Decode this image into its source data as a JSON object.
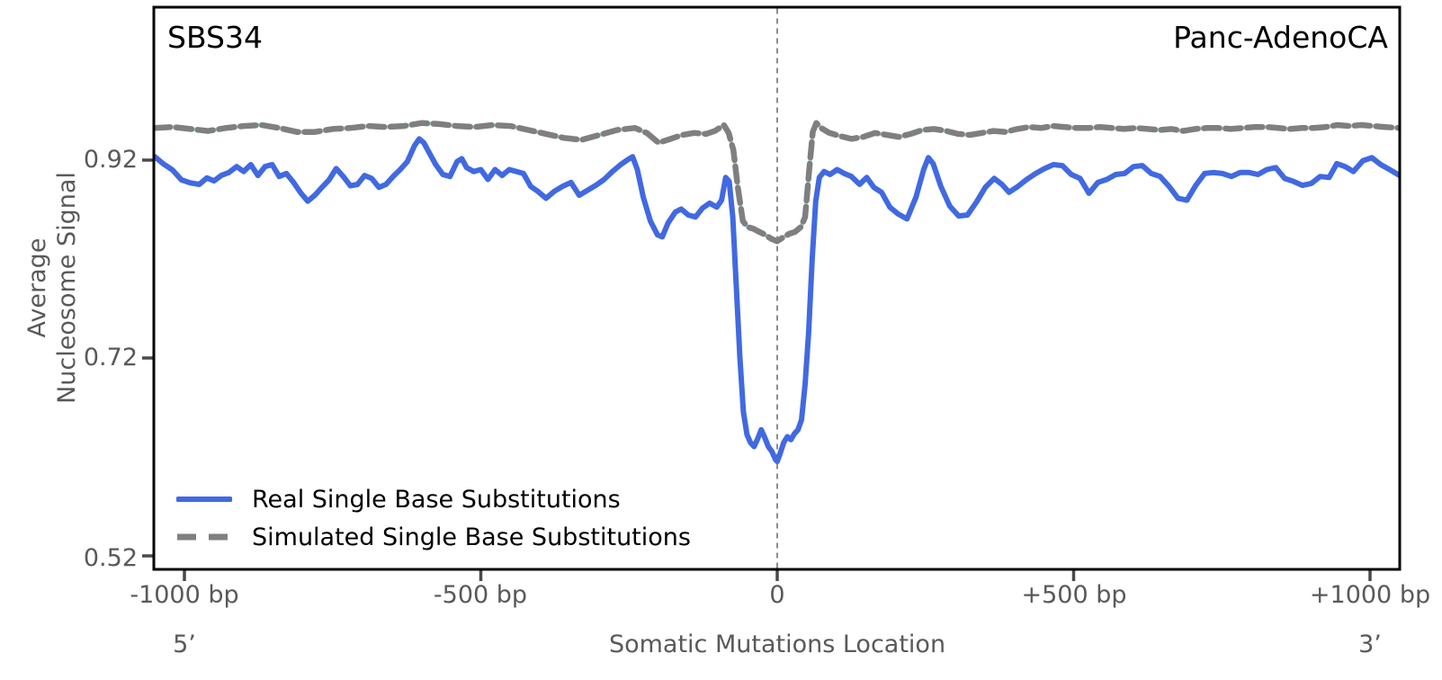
{
  "panel": {
    "left_title": "SBS34",
    "right_title": "Panc-AdenoCA"
  },
  "axis": {
    "y_label_line1": "Average",
    "y_label_line2": "Nucleosome Signal",
    "x_label": "Somatic Mutations Location",
    "left_end_label": "5’",
    "right_end_label": "3’"
  },
  "legend": {
    "real_label": "Real Single Base Substitutions",
    "simulated_label": "Simulated Single Base Substitutions"
  },
  "chart_data": {
    "type": "line",
    "title": "",
    "xlabel": "Somatic Mutations Location",
    "ylabel": "Average Nucleosome Signal",
    "xlim": [
      -1050,
      1050
    ],
    "ylim": [
      0.5,
      1.07
    ],
    "grid": false,
    "legend_position": "lower left",
    "center_guide_line_x": 0,
    "x_ticks": [
      {
        "value": -1000,
        "label": "-1000 bp"
      },
      {
        "value": -500,
        "label": "-500 bp"
      },
      {
        "value": 0,
        "label": "0"
      },
      {
        "value": 500,
        "label": "+500 bp"
      },
      {
        "value": 1000,
        "label": "+1000 bp"
      }
    ],
    "y_ticks": [
      {
        "value": 0.92,
        "label": "0.92"
      },
      {
        "value": 0.72,
        "label": "0.72"
      },
      {
        "value": 0.52,
        "label": "0.52"
      }
    ],
    "colors": {
      "real": "#4169E1",
      "simulated": "#7f7f7f",
      "simulated_underlay": "#ADD8E6",
      "axis_text": "#595959",
      "tick_mark": "#4a4a4a",
      "spine": "#000000",
      "guide_line": "#7f7f7f"
    },
    "series": [
      {
        "name": "Simulated Single Base Substitutions",
        "style": "dashed",
        "color_key": "simulated",
        "points": [
          [
            -1050,
            0.9525
          ],
          [
            -1020,
            0.9535
          ],
          [
            -990,
            0.9515
          ],
          [
            -960,
            0.9495
          ],
          [
            -930,
            0.9525
          ],
          [
            -900,
            0.9545
          ],
          [
            -870,
            0.9555
          ],
          [
            -840,
            0.9525
          ],
          [
            -810,
            0.9485
          ],
          [
            -780,
            0.9485
          ],
          [
            -750,
            0.9515
          ],
          [
            -720,
            0.9525
          ],
          [
            -690,
            0.9545
          ],
          [
            -660,
            0.9535
          ],
          [
            -630,
            0.9545
          ],
          [
            -600,
            0.9575
          ],
          [
            -570,
            0.9565
          ],
          [
            -540,
            0.9545
          ],
          [
            -510,
            0.9535
          ],
          [
            -480,
            0.9555
          ],
          [
            -450,
            0.9545
          ],
          [
            -420,
            0.9505
          ],
          [
            -390,
            0.9465
          ],
          [
            -360,
            0.9425
          ],
          [
            -330,
            0.9405
          ],
          [
            -300,
            0.9455
          ],
          [
            -270,
            0.9505
          ],
          [
            -240,
            0.9525
          ],
          [
            -220,
            0.9475
          ],
          [
            -200,
            0.9375
          ],
          [
            -180,
            0.9415
          ],
          [
            -160,
            0.9455
          ],
          [
            -140,
            0.9475
          ],
          [
            -120,
            0.9465
          ],
          [
            -105,
            0.9495
          ],
          [
            -90,
            0.9555
          ],
          [
            -82,
            0.9475
          ],
          [
            -74,
            0.9305
          ],
          [
            -66,
            0.8905
          ],
          [
            -58,
            0.8585
          ],
          [
            -50,
            0.8525
          ],
          [
            -40,
            0.8505
          ],
          [
            -30,
            0.8475
          ],
          [
            -20,
            0.8445
          ],
          [
            -10,
            0.8405
          ],
          [
            0,
            0.838
          ],
          [
            10,
            0.842
          ],
          [
            20,
            0.8455
          ],
          [
            30,
            0.8475
          ],
          [
            40,
            0.8525
          ],
          [
            47,
            0.8625
          ],
          [
            54,
            0.9105
          ],
          [
            60,
            0.9485
          ],
          [
            66,
            0.9575
          ],
          [
            74,
            0.9525
          ],
          [
            88,
            0.9475
          ],
          [
            105,
            0.9445
          ],
          [
            125,
            0.9415
          ],
          [
            145,
            0.9435
          ],
          [
            165,
            0.9475
          ],
          [
            185,
            0.9455
          ],
          [
            205,
            0.9435
          ],
          [
            225,
            0.9465
          ],
          [
            245,
            0.9505
          ],
          [
            265,
            0.9515
          ],
          [
            285,
            0.9495
          ],
          [
            305,
            0.9465
          ],
          [
            325,
            0.9455
          ],
          [
            345,
            0.9475
          ],
          [
            365,
            0.9495
          ],
          [
            385,
            0.9485
          ],
          [
            405,
            0.9515
          ],
          [
            425,
            0.9535
          ],
          [
            445,
            0.9525
          ],
          [
            465,
            0.9545
          ],
          [
            485,
            0.9535
          ],
          [
            505,
            0.9525
          ],
          [
            525,
            0.9525
          ],
          [
            545,
            0.9535
          ],
          [
            565,
            0.9525
          ],
          [
            585,
            0.9515
          ],
          [
            605,
            0.9525
          ],
          [
            625,
            0.9515
          ],
          [
            645,
            0.9505
          ],
          [
            665,
            0.9515
          ],
          [
            685,
            0.9495
          ],
          [
            705,
            0.9515
          ],
          [
            725,
            0.9525
          ],
          [
            745,
            0.9525
          ],
          [
            765,
            0.9515
          ],
          [
            785,
            0.9525
          ],
          [
            805,
            0.9535
          ],
          [
            825,
            0.9535
          ],
          [
            845,
            0.9525
          ],
          [
            865,
            0.9515
          ],
          [
            885,
            0.9525
          ],
          [
            905,
            0.9525
          ],
          [
            925,
            0.9535
          ],
          [
            945,
            0.9555
          ],
          [
            965,
            0.9545
          ],
          [
            985,
            0.9555
          ],
          [
            1005,
            0.9545
          ],
          [
            1025,
            0.9535
          ],
          [
            1050,
            0.9525
          ]
        ]
      },
      {
        "name": "Real Single Base Substitutions",
        "style": "solid",
        "color_key": "real",
        "points": [
          [
            -1050,
            0.9235
          ],
          [
            -1035,
            0.916
          ],
          [
            -1020,
            0.91
          ],
          [
            -1005,
            0.9
          ],
          [
            -990,
            0.897
          ],
          [
            -975,
            0.8955
          ],
          [
            -962,
            0.902
          ],
          [
            -950,
            0.899
          ],
          [
            -938,
            0.9045
          ],
          [
            -925,
            0.9075
          ],
          [
            -912,
            0.9135
          ],
          [
            -900,
            0.9085
          ],
          [
            -888,
            0.9155
          ],
          [
            -876,
            0.9045
          ],
          [
            -864,
            0.9135
          ],
          [
            -852,
            0.9155
          ],
          [
            -840,
            0.9035
          ],
          [
            -828,
            0.9065
          ],
          [
            -816,
            0.8975
          ],
          [
            -804,
            0.887
          ],
          [
            -792,
            0.8785
          ],
          [
            -780,
            0.8845
          ],
          [
            -768,
            0.8925
          ],
          [
            -756,
            0.9
          ],
          [
            -744,
            0.9115
          ],
          [
            -732,
            0.9035
          ],
          [
            -720,
            0.894
          ],
          [
            -708,
            0.8955
          ],
          [
            -696,
            0.9045
          ],
          [
            -684,
            0.9015
          ],
          [
            -672,
            0.8925
          ],
          [
            -660,
            0.8955
          ],
          [
            -648,
            0.9035
          ],
          [
            -636,
            0.9105
          ],
          [
            -624,
            0.9185
          ],
          [
            -612,
            0.9345
          ],
          [
            -604,
            0.9415
          ],
          [
            -596,
            0.9375
          ],
          [
            -588,
            0.9285
          ],
          [
            -576,
            0.9155
          ],
          [
            -564,
            0.9055
          ],
          [
            -552,
            0.9035
          ],
          [
            -540,
            0.9185
          ],
          [
            -532,
            0.9215
          ],
          [
            -524,
            0.9125
          ],
          [
            -512,
            0.9085
          ],
          [
            -500,
            0.9105
          ],
          [
            -488,
            0.9005
          ],
          [
            -476,
            0.9105
          ],
          [
            -464,
            0.9045
          ],
          [
            -452,
            0.9105
          ],
          [
            -440,
            0.9085
          ],
          [
            -428,
            0.9065
          ],
          [
            -416,
            0.8935
          ],
          [
            -404,
            0.8885
          ],
          [
            -390,
            0.8815
          ],
          [
            -376,
            0.8885
          ],
          [
            -362,
            0.8935
          ],
          [
            -348,
            0.8975
          ],
          [
            -334,
            0.8845
          ],
          [
            -320,
            0.8895
          ],
          [
            -306,
            0.8945
          ],
          [
            -292,
            0.9005
          ],
          [
            -278,
            0.9085
          ],
          [
            -264,
            0.9155
          ],
          [
            -252,
            0.9205
          ],
          [
            -244,
            0.9235
          ],
          [
            -236,
            0.9105
          ],
          [
            -226,
            0.8825
          ],
          [
            -214,
            0.8585
          ],
          [
            -202,
            0.8445
          ],
          [
            -194,
            0.8425
          ],
          [
            -184,
            0.8565
          ],
          [
            -172,
            0.8675
          ],
          [
            -162,
            0.8705
          ],
          [
            -150,
            0.8645
          ],
          [
            -138,
            0.8625
          ],
          [
            -126,
            0.8715
          ],
          [
            -114,
            0.8765
          ],
          [
            -102,
            0.8725
          ],
          [
            -94,
            0.8795
          ],
          [
            -87,
            0.9025
          ],
          [
            -81,
            0.8985
          ],
          [
            -75,
            0.8625
          ],
          [
            -69,
            0.7925
          ],
          [
            -63,
            0.7205
          ],
          [
            -57,
            0.6655
          ],
          [
            -51,
            0.6425
          ],
          [
            -45,
            0.6345
          ],
          [
            -39,
            0.6305
          ],
          [
            -33,
            0.6385
          ],
          [
            -27,
            0.6475
          ],
          [
            -21,
            0.6395
          ],
          [
            -15,
            0.6305
          ],
          [
            -9,
            0.6255
          ],
          [
            -3,
            0.6175
          ],
          [
            0,
            0.6155
          ],
          [
            5,
            0.6235
          ],
          [
            11,
            0.6345
          ],
          [
            17,
            0.6405
          ],
          [
            23,
            0.6375
          ],
          [
            29,
            0.6435
          ],
          [
            35,
            0.6475
          ],
          [
            41,
            0.6575
          ],
          [
            47,
            0.6935
          ],
          [
            53,
            0.7455
          ],
          [
            59,
            0.8205
          ],
          [
            65,
            0.8785
          ],
          [
            71,
            0.9025
          ],
          [
            79,
            0.9085
          ],
          [
            89,
            0.9055
          ],
          [
            101,
            0.9105
          ],
          [
            113,
            0.9065
          ],
          [
            125,
            0.9035
          ],
          [
            139,
            0.8955
          ],
          [
            151,
            0.9025
          ],
          [
            163,
            0.8925
          ],
          [
            176,
            0.8875
          ],
          [
            190,
            0.8725
          ],
          [
            204,
            0.8655
          ],
          [
            219,
            0.8605
          ],
          [
            234,
            0.8825
          ],
          [
            247,
            0.9105
          ],
          [
            255,
            0.9225
          ],
          [
            263,
            0.9165
          ],
          [
            276,
            0.8935
          ],
          [
            291,
            0.8735
          ],
          [
            306,
            0.8635
          ],
          [
            321,
            0.8645
          ],
          [
            336,
            0.8775
          ],
          [
            351,
            0.8925
          ],
          [
            366,
            0.9015
          ],
          [
            379,
            0.8955
          ],
          [
            391,
            0.8875
          ],
          [
            406,
            0.8935
          ],
          [
            421,
            0.9005
          ],
          [
            436,
            0.9065
          ],
          [
            451,
            0.9115
          ],
          [
            466,
            0.9155
          ],
          [
            481,
            0.9145
          ],
          [
            496,
            0.9055
          ],
          [
            511,
            0.9015
          ],
          [
            526,
            0.8865
          ],
          [
            541,
            0.8975
          ],
          [
            556,
            0.9005
          ],
          [
            571,
            0.9055
          ],
          [
            586,
            0.9065
          ],
          [
            601,
            0.9135
          ],
          [
            616,
            0.9145
          ],
          [
            631,
            0.9065
          ],
          [
            646,
            0.9035
          ],
          [
            661,
            0.8935
          ],
          [
            676,
            0.8815
          ],
          [
            691,
            0.8795
          ],
          [
            706,
            0.8945
          ],
          [
            721,
            0.9065
          ],
          [
            736,
            0.9075
          ],
          [
            751,
            0.9065
          ],
          [
            766,
            0.9035
          ],
          [
            781,
            0.9075
          ],
          [
            796,
            0.9075
          ],
          [
            811,
            0.9055
          ],
          [
            826,
            0.9105
          ],
          [
            841,
            0.9125
          ],
          [
            856,
            0.9015
          ],
          [
            871,
            0.8985
          ],
          [
            886,
            0.8945
          ],
          [
            901,
            0.8965
          ],
          [
            916,
            0.9035
          ],
          [
            931,
            0.9025
          ],
          [
            944,
            0.9165
          ],
          [
            958,
            0.9135
          ],
          [
            972,
            0.9085
          ],
          [
            988,
            0.9195
          ],
          [
            1003,
            0.9225
          ],
          [
            1018,
            0.9155
          ],
          [
            1033,
            0.9105
          ],
          [
            1050,
            0.9045
          ]
        ]
      }
    ]
  }
}
